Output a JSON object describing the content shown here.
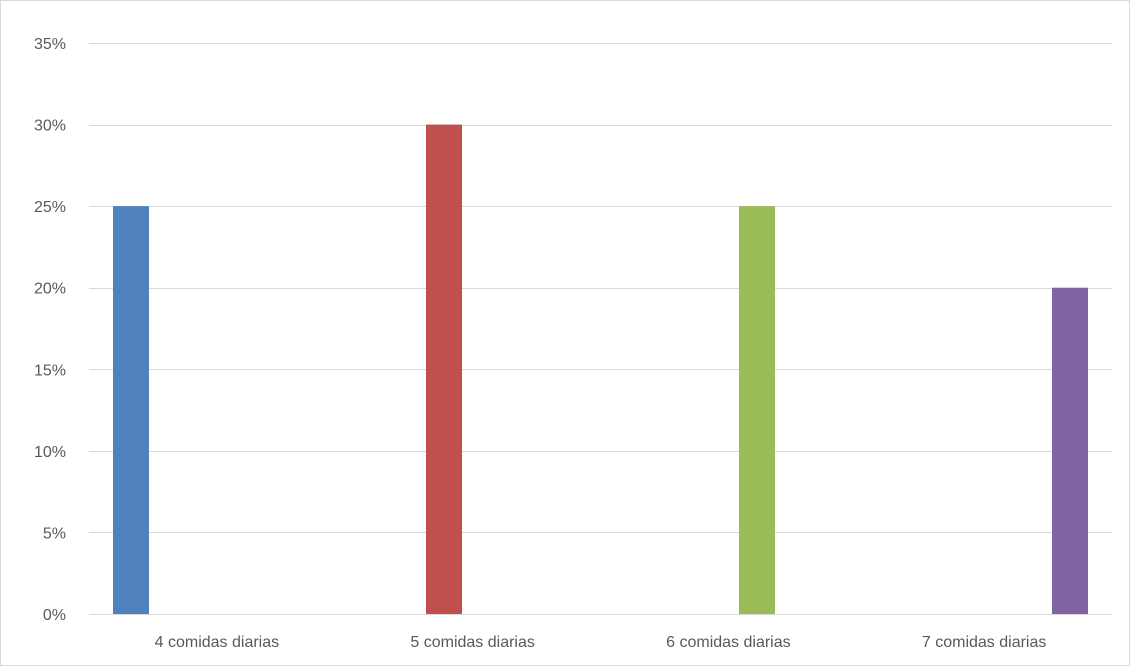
{
  "chart_data": {
    "type": "bar",
    "title": "",
    "xlabel": "",
    "ylabel": "",
    "categories": [
      "4 comidas diarias",
      "5 comidas diarias",
      "6 comidas diarias",
      "7 comidas diarias"
    ],
    "values": [
      25,
      30,
      25,
      20
    ],
    "value_format": "percent",
    "ylim": [
      0,
      35
    ],
    "yticks": [
      0,
      5,
      10,
      15,
      20,
      25,
      30,
      35
    ],
    "ytick_labels": [
      "0%",
      "5%",
      "10%",
      "15%",
      "20%",
      "25%",
      "30%",
      "35%"
    ],
    "grid": true,
    "legend": "none",
    "bar_position": "left-to-right staggered across each category slot",
    "colors": [
      "#4f81bd",
      "#c0504d",
      "#9bbb59",
      "#8064a2"
    ],
    "gridline_color": "#d9d9d9",
    "axis_color": "#d9d9d9"
  }
}
